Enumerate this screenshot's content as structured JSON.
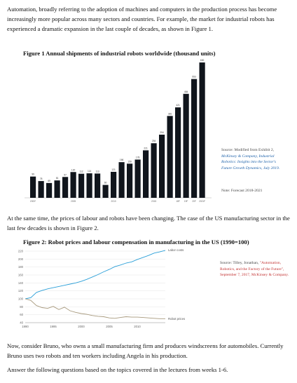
{
  "intro": {
    "text": "Automation, broadly referring to the adoption of machines and computers in the production process has become increasingly more popular across many sectors and countries. For example, the market for industrial robots has experienced a dramatic expansion in the last couple of decades, as shown in Figure 1."
  },
  "figure1": {
    "title": "Figure 1 Annual shipments of industrial robots worldwide (thousand units)",
    "source_prefix": "Source: Modified from Exhibit 2, ",
    "source_italic": "McKinsey & Company, Industrial Robotics: Insights into the Sector's Future Growth Dynamics, July 2019.",
    "note": "Note: Forecast 2018-2021"
  },
  "middle": {
    "text": "At the same time, the prices of labour and robots have been changing. The case of the US manufacturing sector in the last few decades is shown in Figure 2."
  },
  "figure2": {
    "title": "Figure 2: Robot prices and labour compensation in manufacturing in the US (1990=100)",
    "source_prefix": "Source: Tilley, Jonathan, ",
    "source_red": "\"Automation, Robotics, and the Factory of the Future\", September 7, 2017, McKinsey & Company."
  },
  "closing": {
    "p1": "Now, consider Bruno, who owns a small manufacturing firm and produces windscreens for automobiles. Currently Bruno uses two robots and ten workers including Angela in his production.",
    "p2": "Answer the following questions based on the topics covered in the lectures from weeks 1-6."
  },
  "chart_data": [
    {
      "type": "bar",
      "title": "Figure 1 Annual shipments of industrial robots worldwide (thousand units)",
      "color": "#10151c",
      "categories": [
        "2000*",
        "2001",
        "2002",
        "2003",
        "2004",
        "2005",
        "2006",
        "2007",
        "2008",
        "2009",
        "2010",
        "2011",
        "2012",
        "2013",
        "2014",
        "2015",
        "2016",
        "2017",
        "2018F",
        "2019F",
        "2020F",
        "2021F"
      ],
      "x_tick_labels": [
        "2000*",
        "",
        "",
        "",
        "",
        "2005",
        "",
        "",
        "",
        "",
        "2010",
        "",
        "",
        "",
        "",
        "2015",
        "",
        "",
        "18F",
        "19F",
        "20F",
        "2021F"
      ],
      "values": [
        99,
        78,
        69,
        81,
        97,
        120,
        112,
        114,
        113,
        60,
        121,
        166,
        159,
        178,
        221,
        254,
        294,
        381,
        421,
        484,
        553,
        630
      ],
      "value_labels": [
        "99",
        "78",
        "69",
        "81",
        "97",
        "120",
        "112",
        "114",
        "113",
        "60",
        "121",
        "166",
        "159",
        "178",
        "221",
        "254",
        "294",
        "381",
        "421",
        "484",
        "553",
        "630"
      ],
      "ylim": [
        0,
        640
      ]
    },
    {
      "type": "line",
      "title": "Figure 2: Robot prices and labour compensation in manufacturing in the US (1990=100)",
      "x": [
        1990,
        1991,
        1992,
        1993,
        1994,
        1995,
        1996,
        1997,
        1998,
        1999,
        2000,
        2001,
        2002,
        2003,
        2004,
        2005,
        2006,
        2007,
        2008,
        2009,
        2010,
        2011,
        2012,
        2013,
        2014,
        2015
      ],
      "x_ticks": [
        "1990",
        "1995",
        "2000",
        "2005",
        "2010"
      ],
      "y_ticks": [
        "220",
        "200",
        "180",
        "160",
        "140",
        "120",
        "100",
        "80",
        "60",
        "40"
      ],
      "ylim": [
        40,
        220
      ],
      "grid": true,
      "series": [
        {
          "name": "Labor costs",
          "color": "#2a9fd8",
          "values": [
            100,
            103,
            116,
            121,
            125,
            128,
            131,
            134,
            137,
            140,
            144,
            149,
            155,
            161,
            168,
            174,
            181,
            185,
            190,
            193,
            199,
            204,
            209,
            215,
            218,
            222
          ]
        },
        {
          "name": "Robot prices",
          "color": "#a89a7e",
          "values": [
            100,
            96,
            83,
            78,
            76,
            81,
            73,
            79,
            70,
            66,
            63,
            61,
            58,
            56,
            55,
            52,
            51,
            53,
            55,
            54,
            54,
            53,
            52,
            51,
            50,
            50
          ]
        }
      ]
    }
  ]
}
